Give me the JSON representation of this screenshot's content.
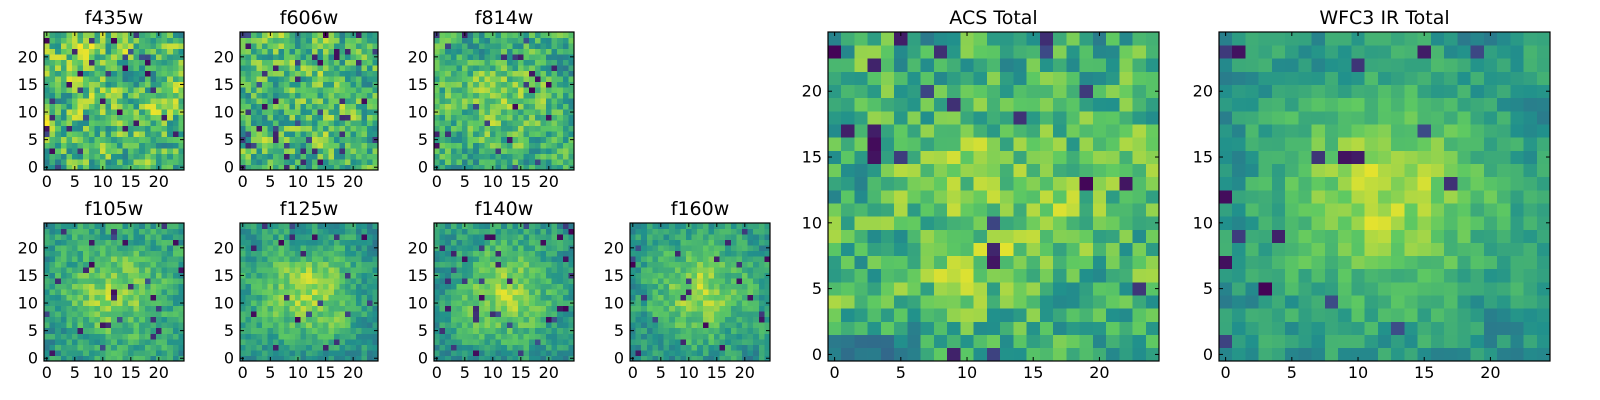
{
  "figure": {
    "colormap": "viridis",
    "colormap_stops": [
      "#440154",
      "#3b528b",
      "#21918c",
      "#5ec962",
      "#fde725"
    ]
  },
  "chart_data": [
    {
      "type": "heatmap",
      "title": "f435w",
      "grid": [
        25,
        25
      ],
      "xlim": [
        0,
        24
      ],
      "ylim": [
        0,
        24
      ],
      "xticks": [
        0,
        5,
        10,
        15,
        20
      ],
      "yticks": [
        0,
        5,
        10,
        15,
        20
      ],
      "seed": 11,
      "noise": 0.95,
      "blob": 0.05,
      "dark_fraction": 0.06
    },
    {
      "type": "heatmap",
      "title": "f606w",
      "grid": [
        25,
        25
      ],
      "xlim": [
        0,
        24
      ],
      "ylim": [
        0,
        24
      ],
      "xticks": [
        0,
        5,
        10,
        15,
        20
      ],
      "yticks": [
        0,
        5,
        10,
        15,
        20
      ],
      "seed": 23,
      "noise": 0.9,
      "blob": 0.1,
      "dark_fraction": 0.06
    },
    {
      "type": "heatmap",
      "title": "f814w",
      "grid": [
        25,
        25
      ],
      "xlim": [
        0,
        24
      ],
      "ylim": [
        0,
        24
      ],
      "xticks": [
        0,
        5,
        10,
        15,
        20
      ],
      "yticks": [
        0,
        5,
        10,
        15,
        20
      ],
      "seed": 37,
      "noise": 0.75,
      "blob": 0.25,
      "dark_fraction": 0.04
    },
    {
      "type": "heatmap",
      "title": "f105w",
      "grid": [
        25,
        25
      ],
      "xlim": [
        0,
        24
      ],
      "ylim": [
        0,
        24
      ],
      "xticks": [
        0,
        5,
        10,
        15,
        20
      ],
      "yticks": [
        0,
        5,
        10,
        15,
        20
      ],
      "seed": 41,
      "noise": 0.55,
      "blob": 0.45,
      "dark_fraction": 0.05
    },
    {
      "type": "heatmap",
      "title": "f125w",
      "grid": [
        25,
        25
      ],
      "xlim": [
        0,
        24
      ],
      "ylim": [
        0,
        24
      ],
      "xticks": [
        0,
        5,
        10,
        15,
        20
      ],
      "yticks": [
        0,
        5,
        10,
        15,
        20
      ],
      "seed": 53,
      "noise": 0.5,
      "blob": 0.5,
      "dark_fraction": 0.04
    },
    {
      "type": "heatmap",
      "title": "f140w",
      "grid": [
        25,
        25
      ],
      "xlim": [
        0,
        24
      ],
      "ylim": [
        0,
        24
      ],
      "xticks": [
        0,
        5,
        10,
        15,
        20
      ],
      "yticks": [
        0,
        5,
        10,
        15,
        20
      ],
      "seed": 67,
      "noise": 0.5,
      "blob": 0.5,
      "dark_fraction": 0.04
    },
    {
      "type": "heatmap",
      "title": "f160w",
      "grid": [
        25,
        25
      ],
      "xlim": [
        0,
        24
      ],
      "ylim": [
        0,
        24
      ],
      "xticks": [
        0,
        5,
        10,
        15,
        20
      ],
      "yticks": [
        0,
        5,
        10,
        15,
        20
      ],
      "seed": 79,
      "noise": 0.5,
      "blob": 0.5,
      "dark_fraction": 0.05
    },
    {
      "type": "heatmap",
      "title": "ACS Total",
      "grid": [
        25,
        25
      ],
      "xlim": [
        0,
        24
      ],
      "ylim": [
        0,
        24
      ],
      "xticks": [
        0,
        5,
        10,
        15,
        20
      ],
      "yticks": [
        0,
        5,
        10,
        15,
        20
      ],
      "seed": 97,
      "noise": 0.8,
      "blob": 0.2,
      "dark_fraction": 0.04
    },
    {
      "type": "heatmap",
      "title": "WFC3 IR Total",
      "grid": [
        25,
        25
      ],
      "xlim": [
        0,
        24
      ],
      "ylim": [
        0,
        24
      ],
      "xticks": [
        0,
        5,
        10,
        15,
        20
      ],
      "yticks": [
        0,
        5,
        10,
        15,
        20
      ],
      "seed": 113,
      "noise": 0.45,
      "blob": 0.55,
      "dark_fraction": 0.04
    }
  ]
}
